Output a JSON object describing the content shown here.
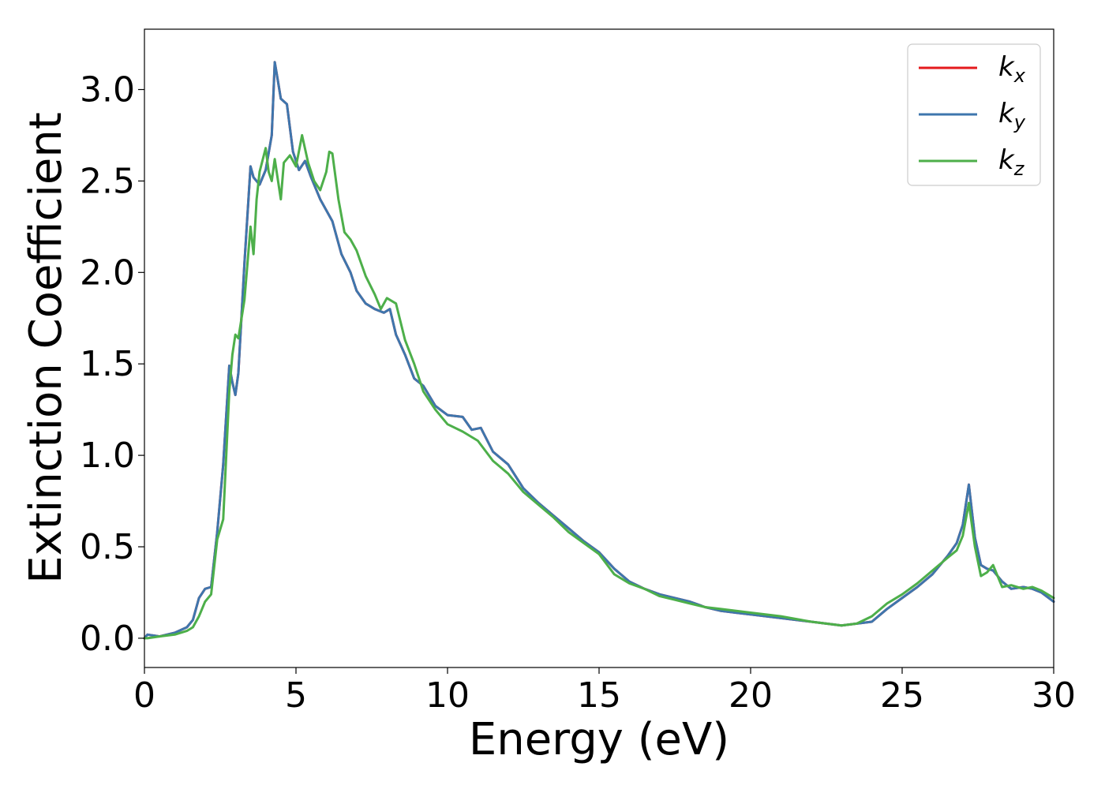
{
  "chart_data": {
    "type": "line",
    "xlabel": "Energy (eV)",
    "ylabel": "Extinction Coefficient",
    "xlim": [
      0,
      30
    ],
    "ylim": [
      -0.16,
      3.33
    ],
    "xticks": [
      0,
      5,
      10,
      15,
      20,
      25,
      30
    ],
    "xtick_labels": [
      "0",
      "5",
      "10",
      "15",
      "20",
      "25",
      "30"
    ],
    "yticks": [
      0.0,
      0.5,
      1.0,
      1.5,
      2.0,
      2.5,
      3.0
    ],
    "ytick_labels": [
      "0.0",
      "0.5",
      "1.0",
      "1.5",
      "2.0",
      "2.5",
      "3.0"
    ],
    "grid": false,
    "legend_position": "top-right",
    "series": [
      {
        "name": "k",
        "sub": "x",
        "color": "#e41a1c",
        "x": [
          0,
          0.1,
          0.5,
          1.0,
          1.4,
          1.6,
          1.8,
          2.0,
          2.2,
          2.4,
          2.6,
          2.8,
          2.9,
          3.0,
          3.1,
          3.3,
          3.5,
          3.6,
          3.8,
          4.0,
          4.2,
          4.3,
          4.4,
          4.5,
          4.7,
          4.9,
          5.1,
          5.3,
          5.5,
          5.8,
          6.2,
          6.5,
          6.8,
          7.0,
          7.3,
          7.6,
          7.9,
          8.1,
          8.3,
          8.6,
          8.9,
          9.2,
          9.6,
          10.0,
          10.5,
          10.8,
          11.1,
          11.5,
          12.0,
          12.5,
          13.0,
          13.5,
          14.0,
          14.5,
          15.0,
          15.5,
          16.0,
          16.5,
          17.0,
          17.5,
          18.0,
          18.5,
          19.0,
          19.5,
          20.0,
          21.0,
          22.0,
          23.0,
          23.5,
          24.0,
          24.5,
          25.0,
          25.5,
          26.0,
          26.5,
          26.8,
          27.0,
          27.2,
          27.4,
          27.6,
          27.8,
          28.0,
          28.3,
          28.6,
          29.0,
          29.3,
          29.6,
          30.0
        ],
        "y": [
          0.0,
          0.02,
          0.01,
          0.03,
          0.06,
          0.1,
          0.22,
          0.27,
          0.28,
          0.58,
          0.95,
          1.49,
          1.4,
          1.33,
          1.45,
          2.05,
          2.58,
          2.52,
          2.48,
          2.56,
          2.75,
          3.15,
          3.05,
          2.95,
          2.92,
          2.66,
          2.56,
          2.61,
          2.52,
          2.4,
          2.28,
          2.1,
          2.0,
          1.9,
          1.83,
          1.8,
          1.78,
          1.8,
          1.66,
          1.55,
          1.42,
          1.38,
          1.27,
          1.22,
          1.21,
          1.14,
          1.15,
          1.02,
          0.95,
          0.82,
          0.74,
          0.67,
          0.6,
          0.53,
          0.47,
          0.38,
          0.31,
          0.27,
          0.24,
          0.22,
          0.2,
          0.17,
          0.15,
          0.14,
          0.13,
          0.11,
          0.09,
          0.07,
          0.08,
          0.09,
          0.16,
          0.22,
          0.28,
          0.35,
          0.45,
          0.52,
          0.62,
          0.84,
          0.55,
          0.4,
          0.38,
          0.37,
          0.31,
          0.27,
          0.28,
          0.27,
          0.25,
          0.2
        ]
      },
      {
        "name": "k",
        "sub": "y",
        "color": "#3e76ad",
        "x": [
          0,
          0.1,
          0.5,
          1.0,
          1.4,
          1.6,
          1.8,
          2.0,
          2.2,
          2.4,
          2.6,
          2.8,
          2.9,
          3.0,
          3.1,
          3.3,
          3.5,
          3.6,
          3.8,
          4.0,
          4.2,
          4.3,
          4.4,
          4.5,
          4.7,
          4.9,
          5.1,
          5.3,
          5.5,
          5.8,
          6.2,
          6.5,
          6.8,
          7.0,
          7.3,
          7.6,
          7.9,
          8.1,
          8.3,
          8.6,
          8.9,
          9.2,
          9.6,
          10.0,
          10.5,
          10.8,
          11.1,
          11.5,
          12.0,
          12.5,
          13.0,
          13.5,
          14.0,
          14.5,
          15.0,
          15.5,
          16.0,
          16.5,
          17.0,
          17.5,
          18.0,
          18.5,
          19.0,
          19.5,
          20.0,
          21.0,
          22.0,
          23.0,
          23.5,
          24.0,
          24.5,
          25.0,
          25.5,
          26.0,
          26.5,
          26.8,
          27.0,
          27.2,
          27.4,
          27.6,
          27.8,
          28.0,
          28.3,
          28.6,
          29.0,
          29.3,
          29.6,
          30.0
        ],
        "y": [
          0.0,
          0.02,
          0.01,
          0.03,
          0.06,
          0.1,
          0.22,
          0.27,
          0.28,
          0.58,
          0.95,
          1.49,
          1.4,
          1.33,
          1.45,
          2.05,
          2.58,
          2.52,
          2.48,
          2.56,
          2.75,
          3.15,
          3.05,
          2.95,
          2.92,
          2.66,
          2.56,
          2.61,
          2.52,
          2.4,
          2.28,
          2.1,
          2.0,
          1.9,
          1.83,
          1.8,
          1.78,
          1.8,
          1.66,
          1.55,
          1.42,
          1.38,
          1.27,
          1.22,
          1.21,
          1.14,
          1.15,
          1.02,
          0.95,
          0.82,
          0.74,
          0.67,
          0.6,
          0.53,
          0.47,
          0.38,
          0.31,
          0.27,
          0.24,
          0.22,
          0.2,
          0.17,
          0.15,
          0.14,
          0.13,
          0.11,
          0.09,
          0.07,
          0.08,
          0.09,
          0.16,
          0.22,
          0.28,
          0.35,
          0.45,
          0.52,
          0.62,
          0.84,
          0.55,
          0.4,
          0.38,
          0.37,
          0.31,
          0.27,
          0.28,
          0.27,
          0.25,
          0.2
        ]
      },
      {
        "name": "k",
        "sub": "z",
        "color": "#4daf4a",
        "x": [
          0,
          0.1,
          0.5,
          1.0,
          1.4,
          1.6,
          1.8,
          2.0,
          2.2,
          2.4,
          2.6,
          2.8,
          2.9,
          3.0,
          3.1,
          3.3,
          3.5,
          3.6,
          3.7,
          3.8,
          4.0,
          4.1,
          4.2,
          4.3,
          4.5,
          4.6,
          4.8,
          5.0,
          5.2,
          5.4,
          5.6,
          5.8,
          6.0,
          6.1,
          6.2,
          6.4,
          6.6,
          6.8,
          7.0,
          7.3,
          7.6,
          7.8,
          8.0,
          8.3,
          8.6,
          8.9,
          9.2,
          9.6,
          10.0,
          10.5,
          11.0,
          11.5,
          12.0,
          12.5,
          13.0,
          13.5,
          14.0,
          14.5,
          15.0,
          15.5,
          16.0,
          16.5,
          17.0,
          17.5,
          18.0,
          18.5,
          19.0,
          19.5,
          20.0,
          21.0,
          22.0,
          23.0,
          23.5,
          24.0,
          24.5,
          25.0,
          25.5,
          26.0,
          26.5,
          26.8,
          27.0,
          27.2,
          27.4,
          27.6,
          27.8,
          28.0,
          28.3,
          28.6,
          29.0,
          29.3,
          29.6,
          30.0
        ],
        "y": [
          0.0,
          0.0,
          0.01,
          0.02,
          0.04,
          0.06,
          0.12,
          0.2,
          0.24,
          0.54,
          0.65,
          1.35,
          1.55,
          1.66,
          1.64,
          1.85,
          2.25,
          2.1,
          2.4,
          2.55,
          2.68,
          2.55,
          2.5,
          2.62,
          2.4,
          2.6,
          2.64,
          2.58,
          2.75,
          2.6,
          2.5,
          2.45,
          2.55,
          2.66,
          2.65,
          2.4,
          2.22,
          2.18,
          2.12,
          1.98,
          1.88,
          1.8,
          1.86,
          1.83,
          1.63,
          1.5,
          1.35,
          1.25,
          1.17,
          1.13,
          1.08,
          0.97,
          0.9,
          0.8,
          0.73,
          0.66,
          0.58,
          0.52,
          0.46,
          0.35,
          0.3,
          0.27,
          0.23,
          0.21,
          0.19,
          0.17,
          0.16,
          0.15,
          0.14,
          0.12,
          0.09,
          0.07,
          0.08,
          0.12,
          0.19,
          0.24,
          0.3,
          0.37,
          0.44,
          0.48,
          0.56,
          0.74,
          0.5,
          0.34,
          0.36,
          0.4,
          0.28,
          0.29,
          0.27,
          0.28,
          0.26,
          0.22
        ]
      }
    ]
  }
}
